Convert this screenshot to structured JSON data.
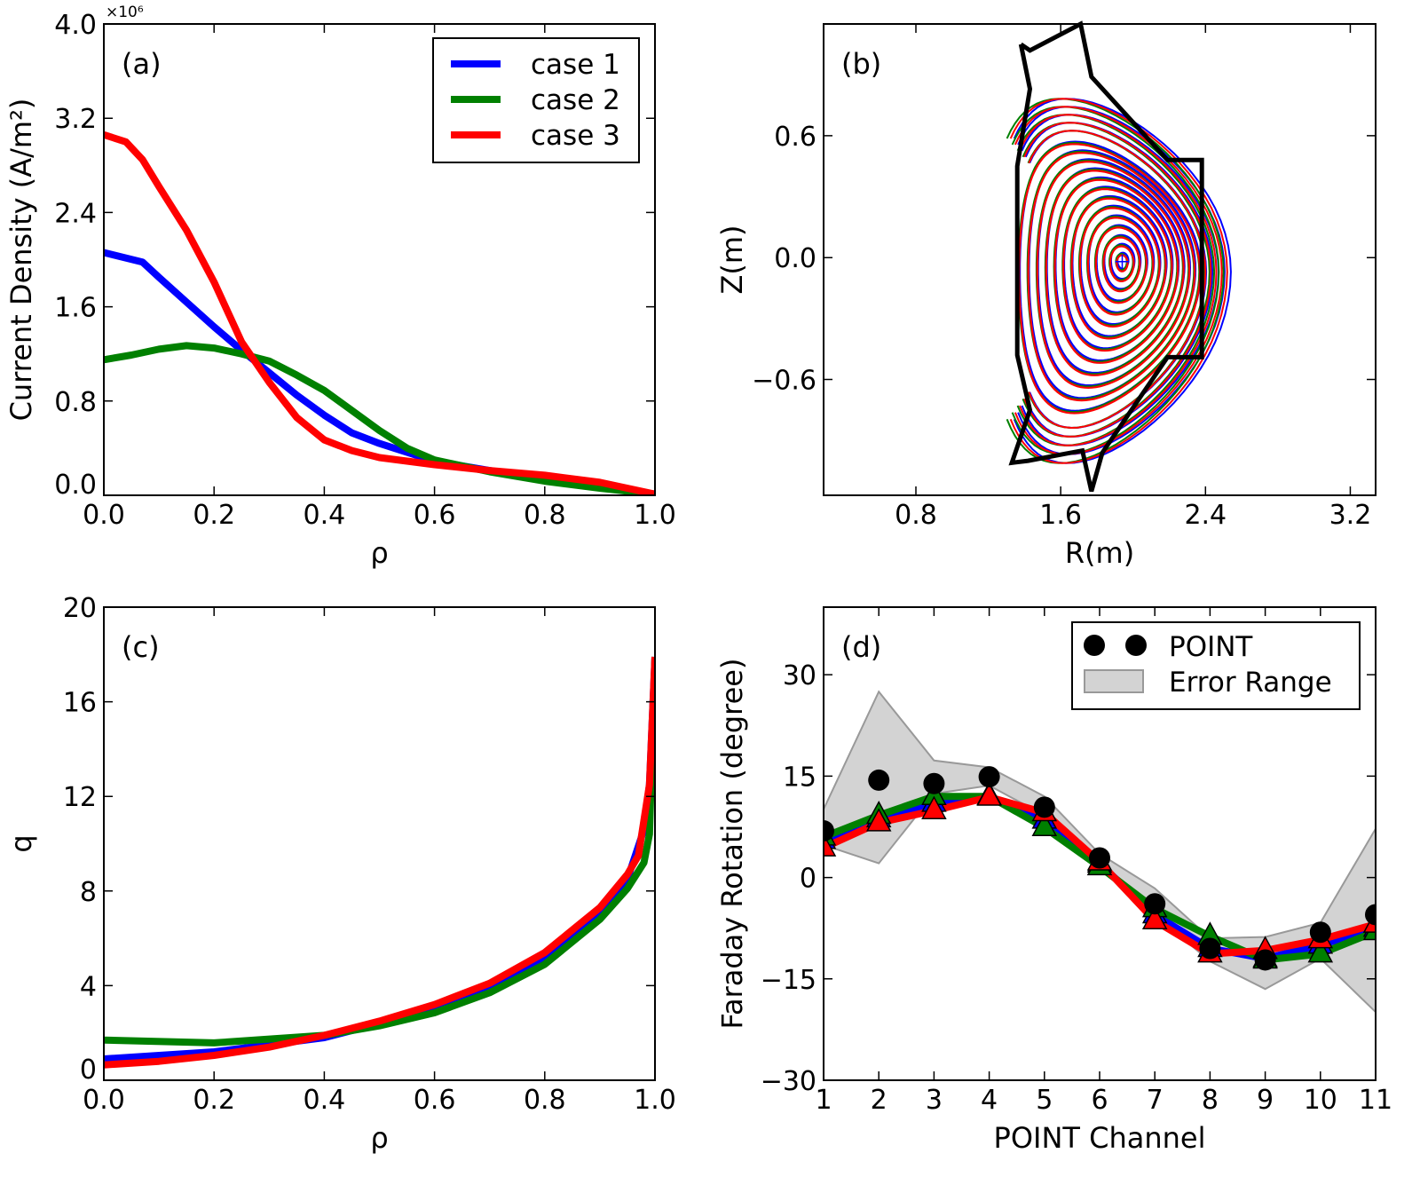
{
  "colors": {
    "case1": "#0000ff",
    "case2": "#008000",
    "case3": "#ff0000",
    "point": "#000000",
    "error_fill": "#d3d3d3",
    "error_edge": "#999999"
  },
  "chart_data": [
    {
      "id": "a",
      "type": "line",
      "panel_label": "(a)",
      "xlabel": "ρ",
      "ylabel": "Current Density (A/m²)",
      "y_multiplier_label": "×10⁶",
      "xlim": [
        0,
        1.0
      ],
      "ylim": [
        0,
        4.0
      ],
      "xticks": [
        "0.0",
        "0.2",
        "0.4",
        "0.6",
        "0.8",
        "1.0"
      ],
      "yticks": [
        "0.0",
        "0.8",
        "1.6",
        "2.4",
        "3.2",
        "4.0"
      ],
      "legend_placement": "top-right",
      "series": [
        {
          "name": "case 1",
          "color": "#0000ff",
          "x": [
            0,
            0.07,
            0.1,
            0.15,
            0.2,
            0.25,
            0.3,
            0.35,
            0.4,
            0.45,
            0.5,
            0.6,
            0.7,
            0.8,
            0.9,
            1.0
          ],
          "y": [
            2.06,
            1.98,
            1.85,
            1.64,
            1.43,
            1.23,
            1.04,
            0.85,
            0.68,
            0.53,
            0.44,
            0.29,
            0.21,
            0.14,
            0.08,
            0.01
          ]
        },
        {
          "name": "case 2",
          "color": "#008000",
          "x": [
            0,
            0.05,
            0.1,
            0.15,
            0.2,
            0.25,
            0.3,
            0.35,
            0.4,
            0.45,
            0.5,
            0.55,
            0.6,
            0.7,
            0.8,
            0.9,
            1.0
          ],
          "y": [
            1.15,
            1.19,
            1.24,
            1.27,
            1.25,
            1.2,
            1.14,
            1.02,
            0.89,
            0.72,
            0.55,
            0.4,
            0.3,
            0.2,
            0.12,
            0.06,
            0.01
          ]
        },
        {
          "name": "case 3",
          "color": "#ff0000",
          "x": [
            0,
            0.04,
            0.07,
            0.1,
            0.15,
            0.2,
            0.25,
            0.3,
            0.35,
            0.4,
            0.45,
            0.5,
            0.6,
            0.7,
            0.8,
            0.9,
            1.0
          ],
          "y": [
            3.06,
            3.0,
            2.85,
            2.62,
            2.25,
            1.81,
            1.3,
            0.96,
            0.66,
            0.47,
            0.38,
            0.32,
            0.26,
            0.21,
            0.17,
            0.11,
            0.01
          ]
        }
      ]
    },
    {
      "id": "b",
      "type": "contour",
      "panel_label": "(b)",
      "xlabel": "R(m)",
      "ylabel": "Z(m)",
      "xlim": [
        0.29,
        3.34
      ],
      "ylim": [
        -1.17,
        1.15
      ],
      "xticks": [
        "0.8",
        "1.6",
        "2.4",
        "3.2"
      ],
      "yticks": [
        "−0.6",
        "0.0",
        "0.6"
      ],
      "magnetic_axis": [
        1.94,
        -0.02
      ],
      "wall": [
        [
          1.38,
          1.05
        ],
        [
          1.43,
          1.02
        ],
        [
          1.71,
          1.15
        ],
        [
          1.77,
          0.89
        ],
        [
          2.19,
          0.48
        ],
        [
          2.38,
          0.48
        ],
        [
          2.38,
          -0.49
        ],
        [
          2.19,
          -0.49
        ],
        [
          1.83,
          -0.96
        ],
        [
          1.77,
          -1.15
        ],
        [
          1.72,
          -0.95
        ],
        [
          1.42,
          -1.0
        ],
        [
          1.33,
          -1.01
        ],
        [
          1.43,
          -0.75
        ],
        [
          1.36,
          -0.48
        ],
        [
          1.36,
          0.45
        ],
        [
          1.43,
          0.83
        ],
        [
          1.38,
          1.05
        ]
      ],
      "series": [
        {
          "name": "case 1",
          "color": "#0000ff"
        },
        {
          "name": "case 2",
          "color": "#008000"
        },
        {
          "name": "case 3",
          "color": "#ff0000"
        }
      ]
    },
    {
      "id": "c",
      "type": "line",
      "panel_label": "(c)",
      "xlabel": "ρ",
      "ylabel": "q",
      "xlim": [
        0,
        1.0
      ],
      "ylim": [
        0,
        20
      ],
      "xticks": [
        "0.0",
        "0.2",
        "0.4",
        "0.6",
        "0.8",
        "1.0"
      ],
      "yticks": [
        "0",
        "4",
        "8",
        "12",
        "16",
        "20"
      ],
      "series": [
        {
          "name": "case 1",
          "color": "#0000ff",
          "x": [
            0,
            0.2,
            0.4,
            0.5,
            0.6,
            0.7,
            0.8,
            0.9,
            0.95,
            0.98,
            0.99,
            1.0
          ],
          "y": [
            0.9,
            1.2,
            1.8,
            2.4,
            3.0,
            3.9,
            5.1,
            7.0,
            8.5,
            10.6,
            12.5,
            17.9
          ]
        },
        {
          "name": "case 2",
          "color": "#008000",
          "x": [
            0,
            0.2,
            0.4,
            0.5,
            0.6,
            0.7,
            0.8,
            0.9,
            0.95,
            0.98,
            0.99,
            1.0
          ],
          "y": [
            1.7,
            1.58,
            1.9,
            2.3,
            2.85,
            3.7,
            4.9,
            6.8,
            8.1,
            9.2,
            10.4,
            17.9
          ]
        },
        {
          "name": "case 3",
          "color": "#ff0000",
          "x": [
            0,
            0.1,
            0.2,
            0.3,
            0.4,
            0.5,
            0.6,
            0.7,
            0.8,
            0.9,
            0.95,
            0.97,
            0.99,
            1.0
          ],
          "y": [
            0.65,
            0.8,
            1.05,
            1.4,
            1.9,
            2.5,
            3.2,
            4.1,
            5.4,
            7.3,
            8.7,
            9.5,
            12.5,
            17.9
          ]
        }
      ]
    },
    {
      "id": "d",
      "type": "line",
      "panel_label": "(d)",
      "xlabel": "POINT Channel",
      "ylabel": "Faraday Rotation (degree)",
      "xlim": [
        1,
        11
      ],
      "ylim": [
        -30,
        40
      ],
      "xticks": [
        "1",
        "2",
        "3",
        "4",
        "5",
        "6",
        "7",
        "8",
        "9",
        "10",
        "11"
      ],
      "yticks": [
        "−30",
        "−15",
        "0",
        "15",
        "30"
      ],
      "legend_placement": "top-right",
      "x": [
        1,
        2,
        3,
        4,
        5,
        6,
        7,
        8,
        9,
        10,
        11
      ],
      "point": {
        "name": "POINT",
        "y": [
          6.9,
          14.4,
          13.9,
          14.9,
          10.4,
          2.9,
          -3.9,
          -10.5,
          -12.2,
          -8.1,
          -5.5
        ]
      },
      "error_range": {
        "name": "Error Range",
        "upper": [
          10.1,
          27.5,
          17.3,
          16.3,
          12.0,
          3.5,
          -1.6,
          -9.0,
          -8.8,
          -6.7,
          7.2
        ],
        "lower": [
          4.8,
          2.1,
          12.4,
          13.6,
          9.2,
          2.3,
          -5.5,
          -12.4,
          -16.5,
          -12.0,
          -19.9
        ]
      },
      "series": [
        {
          "name": "case 1",
          "color": "#0000ff",
          "y": [
            5.5,
            8.7,
            11.0,
            12.0,
            8.5,
            2.0,
            -5.5,
            -10.5,
            -12.0,
            -10.0,
            -7.5
          ]
        },
        {
          "name": "case 2",
          "color": "#008000",
          "y": [
            6.0,
            9.2,
            12.0,
            12.0,
            7.4,
            1.6,
            -4.6,
            -8.7,
            -12.2,
            -11.3,
            -8.0
          ]
        },
        {
          "name": "case 3",
          "color": "#ff0000",
          "y": [
            4.4,
            8.1,
            9.9,
            11.9,
            9.6,
            2.3,
            -6.4,
            -11.3,
            -10.8,
            -9.2,
            -6.9
          ]
        }
      ]
    }
  ]
}
